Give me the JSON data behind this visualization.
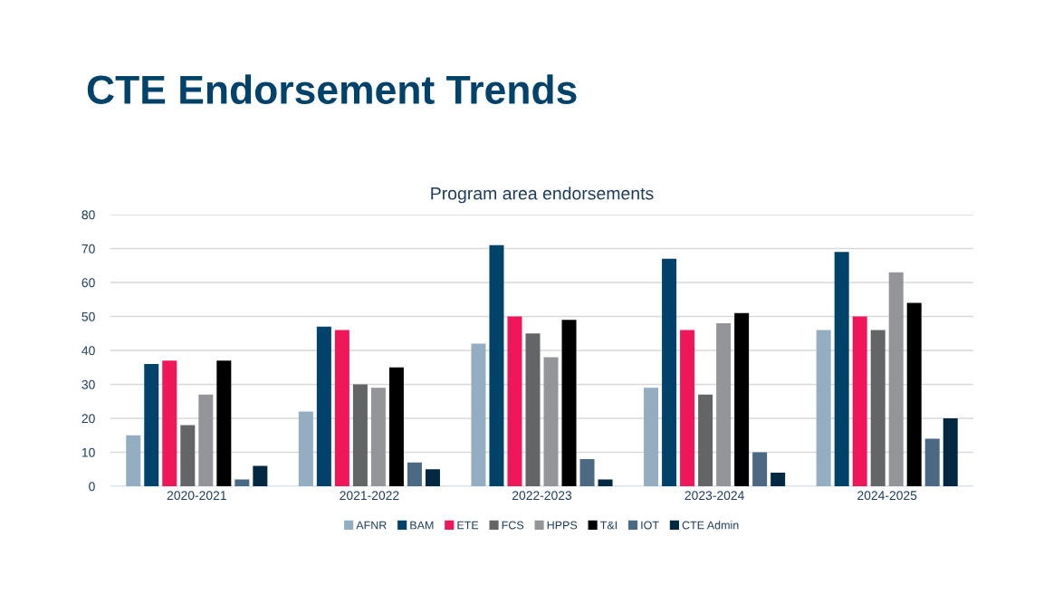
{
  "chart_data": {
    "type": "bar",
    "title": "CTE Endorsement Trends",
    "subtitle": "Program area endorsements",
    "categories": [
      "2020-2021",
      "2021-2022",
      "2022-2023",
      "2023-2024",
      "2024-2025"
    ],
    "series": [
      {
        "name": "AFNR",
        "color": "#94adc1",
        "values": [
          15,
          22,
          42,
          29,
          46
        ]
      },
      {
        "name": "BAM",
        "color": "#01426a",
        "values": [
          36,
          47,
          71,
          67,
          69
        ]
      },
      {
        "name": "ETE",
        "color": "#ef1659",
        "values": [
          37,
          46,
          50,
          46,
          50
        ]
      },
      {
        "name": "FCS",
        "color": "#646567",
        "values": [
          18,
          30,
          45,
          27,
          46
        ]
      },
      {
        "name": "HPPS",
        "color": "#949599",
        "values": [
          27,
          29,
          38,
          48,
          63
        ]
      },
      {
        "name": "T&I",
        "color": "#000000",
        "values": [
          37,
          35,
          49,
          51,
          54
        ]
      },
      {
        "name": "IOT",
        "color": "#4b6982",
        "values": [
          2,
          7,
          8,
          10,
          14
        ]
      },
      {
        "name": "CTE Admin",
        "color": "#022842",
        "values": [
          6,
          5,
          2,
          4,
          20
        ]
      }
    ],
    "ylim": [
      0,
      80
    ],
    "yticks": [
      0,
      10,
      20,
      30,
      40,
      50,
      60,
      70,
      80
    ],
    "grid": "y",
    "legend": "bottom"
  }
}
